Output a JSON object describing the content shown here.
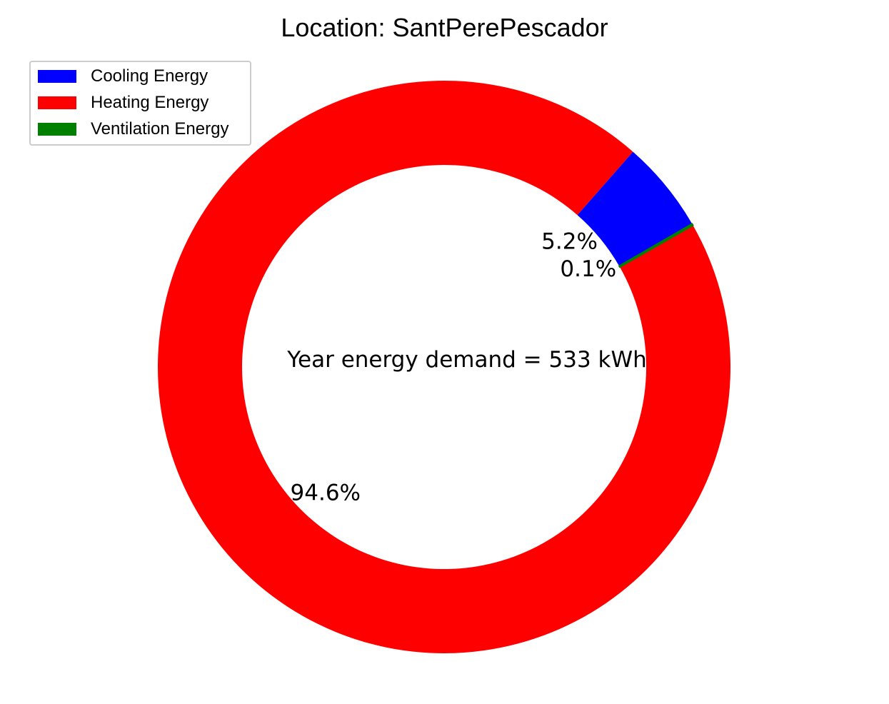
{
  "chart_data": {
    "type": "pie",
    "variant": "donut",
    "title": "Location: SantPerePescador",
    "center_text": "Year energy demand = 533 kWh",
    "start_angle_deg": 30,
    "direction": "counterclockwise",
    "slices": [
      {
        "name": "Cooling Energy",
        "value": 5.2,
        "label": "5.2%",
        "color": "#0000ff"
      },
      {
        "name": "Heating Energy",
        "value": 94.6,
        "label": "94.6%",
        "color": "#ff0000"
      },
      {
        "name": "Ventilation Energy",
        "value": 0.1,
        "label": "0.1%",
        "color": "#008000"
      }
    ],
    "draw_order": [
      1,
      0,
      2
    ],
    "legend": {
      "placement": "top-left",
      "entries": [
        "Cooling Energy",
        "Heating Energy",
        "Ventilation Energy"
      ]
    }
  }
}
